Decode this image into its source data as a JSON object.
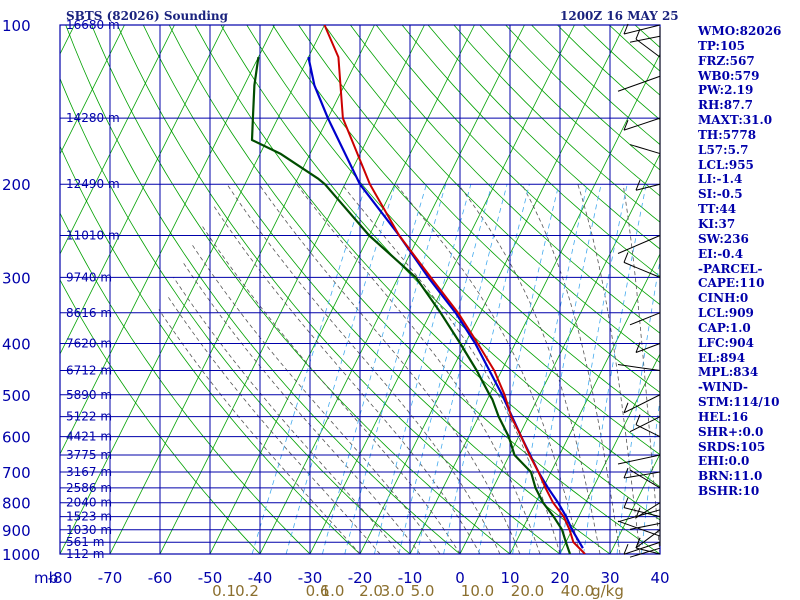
{
  "header": {
    "station": "SBTS (82026) Sounding",
    "datetime": "1200Z 16 MAY 25"
  },
  "indices": [
    "WMO:82026",
    "TP:105",
    "FRZ:567",
    "WB0:579",
    "PW:2.19",
    "RH:87.7",
    "MAXT:31.0",
    "TH:5778",
    "L57:5.7",
    "LCL:955",
    "LI:-1.4",
    "SI:-0.5",
    "TT:44",
    "KI:37",
    "SW:236",
    "EI:-0.4",
    "-PARCEL-",
    "CAPE:110",
    "CINH:0",
    "LCL:909",
    "CAP:1.0",
    "LFC:904",
    "EL:894",
    "MPL:834",
    "-WIND-",
    "STM:114/10",
    "HEL:16",
    "SHR+:0.0",
    "SRDS:105",
    "EHI:0.0",
    "BRN:11.0",
    "BSHR:10"
  ],
  "colors": {
    "grid": "#0000aa",
    "axis_text": "#0000aa",
    "mixing_labels": "#8b6f2e",
    "dry_adiabat": "#00a000",
    "isotherm": "#00a000",
    "moist_adiabat": "#555555",
    "mixing_ratio": "#44aaee",
    "temperature": "#cc0000",
    "dewpoint": "#004d00",
    "parcel": "#0000cc",
    "wind_barb": "#000000"
  },
  "chart_data": {
    "type": "skew-t",
    "pressure_levels": [
      100,
      200,
      300,
      400,
      500,
      600,
      700,
      800,
      900,
      1000
    ],
    "p_extra_lines": [
      150,
      250,
      350,
      450,
      550,
      650,
      750,
      850,
      950
    ],
    "temperature_ticks": [
      -80,
      -70,
      -60,
      -50,
      -40,
      -30,
      -20,
      -10,
      0,
      10,
      20,
      30,
      40
    ],
    "temperature_tick_labels": [
      "-80",
      "-70",
      "-60",
      "-50",
      "-40",
      "-30",
      "-20",
      "-10",
      "0",
      "10",
      "20",
      "30",
      "40"
    ],
    "x_unit": "mb",
    "mixing_ratio_labels": [
      {
        "label": "0.1",
        "t": -47.2
      },
      {
        "label": "0.2",
        "t": -42.6
      },
      {
        "label": "0.6",
        "t": -28.5
      },
      {
        "label": "1.0",
        "t": -25.5
      },
      {
        "label": "2.0",
        "t": -17.8
      },
      {
        "label": "3.0",
        "t": -13.5
      },
      {
        "label": "5.0",
        "t": -7.5
      },
      {
        "label": "10.0",
        "t": 3.5
      },
      {
        "label": "20.0",
        "t": 13.5
      },
      {
        "label": "40.0",
        "t": 23.5
      },
      {
        "label": "g/kg",
        "t": 29.5
      }
    ],
    "height_labels": [
      {
        "p": 100,
        "label": "16680 m"
      },
      {
        "p": 150,
        "label": "14280 m"
      },
      {
        "p": 200,
        "label": "12490 m"
      },
      {
        "p": 250,
        "label": "11010 m"
      },
      {
        "p": 300,
        "label": "9740 m"
      },
      {
        "p": 350,
        "label": "8616 m"
      },
      {
        "p": 400,
        "label": "7620 m"
      },
      {
        "p": 450,
        "label": "6712 m"
      },
      {
        "p": 500,
        "label": "5890 m"
      },
      {
        "p": 550,
        "label": "5122 m"
      },
      {
        "p": 600,
        "label": "4421 m"
      },
      {
        "p": 650,
        "label": "3775 m"
      },
      {
        "p": 700,
        "label": "3167 m"
      },
      {
        "p": 750,
        "label": "2586 m"
      },
      {
        "p": 800,
        "label": "2040 m"
      },
      {
        "p": 850,
        "label": "1523 m"
      },
      {
        "p": 900,
        "label": "1030 m"
      },
      {
        "p": 950,
        "label": "561 m"
      },
      {
        "p": 1000,
        "label": "112 m"
      }
    ],
    "temperature_profile": [
      [
        1000,
        25.0
      ],
      [
        950,
        21.5
      ],
      [
        900,
        19.5
      ],
      [
        850,
        17.0
      ],
      [
        800,
        13.5
      ],
      [
        750,
        10.5
      ],
      [
        700,
        7.5
      ],
      [
        650,
        4.0
      ],
      [
        600,
        0.5
      ],
      [
        550,
        -3.5
      ],
      [
        500,
        -7.0
      ],
      [
        450,
        -11.5
      ],
      [
        400,
        -17.5
      ],
      [
        350,
        -24.5
      ],
      [
        300,
        -33.5
      ],
      [
        250,
        -44.0
      ],
      [
        200,
        -55.0
      ],
      [
        150,
        -67.0
      ],
      [
        115,
        -74.0
      ],
      [
        100,
        -80.0
      ]
    ],
    "dewpoint_profile": [
      [
        1000,
        22.0
      ],
      [
        950,
        20.0
      ],
      [
        900,
        18.0
      ],
      [
        850,
        15.0
      ],
      [
        800,
        11.5
      ],
      [
        750,
        8.5
      ],
      [
        700,
        6.0
      ],
      [
        650,
        1.0
      ],
      [
        600,
        -2.0
      ],
      [
        550,
        -6.0
      ],
      [
        510,
        -9.0
      ],
      [
        500,
        -10.0
      ],
      [
        450,
        -15.0
      ],
      [
        400,
        -21.0
      ],
      [
        350,
        -28.0
      ],
      [
        300,
        -36.5
      ],
      [
        250,
        -50.0
      ],
      [
        200,
        -64.0
      ],
      [
        195,
        -66.0
      ],
      [
        175,
        -76.0
      ],
      [
        165,
        -83.0
      ],
      [
        150,
        -85.0
      ],
      [
        130,
        -88.0
      ],
      [
        115,
        -90.0
      ]
    ],
    "parcel_profile": [
      [
        975,
        24.0
      ],
      [
        900,
        20.0
      ],
      [
        850,
        17.5
      ],
      [
        800,
        14.5
      ],
      [
        750,
        11.0
      ],
      [
        700,
        7.5
      ],
      [
        600,
        0.5
      ],
      [
        500,
        -7.5
      ],
      [
        400,
        -18.0
      ],
      [
        350,
        -25.0
      ],
      [
        300,
        -34.0
      ],
      [
        250,
        -44.0
      ],
      [
        200,
        -57.0
      ],
      [
        150,
        -70.0
      ],
      [
        130,
        -76.0
      ],
      [
        115,
        -80.0
      ]
    ],
    "wind_barb_pressures": [
      1000,
      975,
      950,
      925,
      900,
      875,
      850,
      825,
      800,
      750,
      700,
      650,
      600,
      550,
      500,
      450,
      400,
      350,
      300,
      250,
      200,
      175,
      150,
      125,
      115,
      105,
      100
    ],
    "grid": true,
    "legend": "none"
  }
}
